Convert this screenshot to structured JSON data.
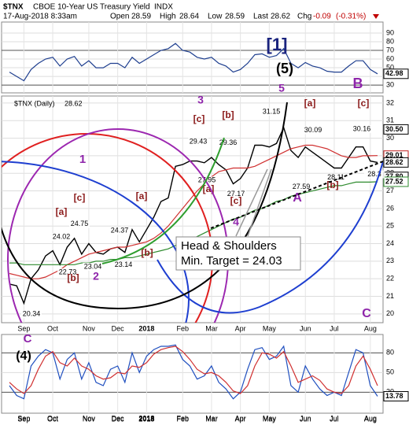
{
  "header": {
    "symbol": "$TNX",
    "name": "CBOE 10-Year US Treasury Yield",
    "exchange": "INDX",
    "timestamp": "17-Aug-2018 8:33am",
    "open_label": "Open",
    "open": 28.59,
    "high_label": "High",
    "high": 28.64,
    "low_label": "Low",
    "low": 28.59,
    "last_label": "Last",
    "last": 28.62,
    "change_label": "Chg",
    "change": -0.09,
    "change_pct": {
      "value": -0.31,
      "label": "(-0.31%)"
    }
  },
  "chart_data": [
    {
      "type": "line",
      "ylim": [
        21,
        102.7
      ],
      "yticks": [
        30,
        40,
        50,
        60,
        70,
        80,
        90
      ],
      "thresholds": [
        70,
        30
      ],
      "grid": true,
      "series": [
        {
          "color": "#1f3f8f",
          "values": [
            45,
            40,
            35,
            48,
            55,
            60,
            62,
            52,
            60,
            63,
            52,
            58,
            50,
            50,
            55,
            55,
            50,
            62,
            55,
            60,
            65,
            70,
            72,
            78,
            70,
            68,
            62,
            60,
            62,
            55,
            52,
            45,
            48,
            55,
            65,
            66,
            62,
            64,
            72,
            55,
            50,
            56,
            52,
            50,
            46,
            45,
            45,
            52,
            58,
            58,
            48,
            42.98
          ]
        }
      ],
      "markers": [
        {
          "value": 42.98,
          "color": "#000000"
        }
      ]
    },
    {
      "type": "line",
      "legend": "$TNX (Daily)",
      "legend_value": 28.62,
      "ylim": [
        19.5,
        32.4
      ],
      "yticks": [
        20,
        21,
        22,
        23,
        24,
        25,
        26,
        27,
        28,
        29,
        30,
        31,
        32
      ],
      "grid": true,
      "categories": [
        null,
        null,
        "Sep",
        null,
        null,
        null,
        "Oct",
        null,
        null,
        null,
        null,
        "Nov",
        null,
        null,
        null,
        "Dec",
        null,
        null,
        null,
        "2018",
        null,
        null,
        null,
        null,
        "Feb",
        null,
        null,
        null,
        "Mar",
        null,
        null,
        null,
        "Apr",
        null,
        null,
        null,
        "May",
        null,
        null,
        null,
        null,
        "Jun",
        null,
        null,
        null,
        "Jul",
        null,
        null,
        null,
        null,
        "Aug",
        null
      ],
      "series": [
        {
          "color": "#000000",
          "values": [
            21.7,
            21.6,
            20.6,
            22.0,
            22.5,
            23.3,
            23.6,
            22.8,
            23.8,
            24.3,
            23.4,
            24.0,
            23.5,
            23.4,
            23.7,
            23.8,
            23.5,
            24.8,
            24.1,
            24.8,
            25.5,
            26.4,
            26.6,
            28.4,
            28.5,
            28.7,
            28.7,
            28.6,
            28.9,
            28.5,
            28.2,
            27.4,
            27.7,
            28.3,
            29.6,
            29.6,
            29.5,
            29.7,
            30.6,
            29.3,
            28.9,
            29.5,
            29.2,
            28.9,
            28.6,
            28.3,
            28.3,
            28.9,
            29.5,
            29.5,
            28.7,
            28.62
          ]
        },
        {
          "color": "#d03030",
          "values": [
            22.3,
            22.2,
            22.1,
            22.0,
            22.0,
            22.1,
            22.3,
            22.5,
            22.8,
            23.0,
            23.2,
            23.4,
            23.5,
            23.6,
            23.7,
            23.8,
            23.8,
            23.9,
            24.0,
            24.1,
            24.3,
            24.6,
            25.0,
            25.5,
            26.0,
            26.5,
            27.0,
            27.4,
            27.8,
            28.1,
            28.2,
            28.3,
            28.3,
            28.3,
            28.4,
            28.6,
            28.8,
            29.0,
            29.2,
            29.4,
            29.5,
            29.6,
            29.6,
            29.5,
            29.4,
            29.2,
            29.0,
            28.9,
            28.9,
            29.0,
            29.0,
            29.01
          ]
        },
        {
          "color": "#2e8b2e",
          "values": [
            22.9,
            22.9,
            22.8,
            22.8,
            22.8,
            22.8,
            22.8,
            22.8,
            22.8,
            22.8,
            22.9,
            22.9,
            23.0,
            23.0,
            23.1,
            23.1,
            23.2,
            23.2,
            23.3,
            23.4,
            23.5,
            23.6,
            23.7,
            23.9,
            24.0,
            24.2,
            24.4,
            24.6,
            24.8,
            25.0,
            25.2,
            25.4,
            25.5,
            25.7,
            25.9,
            26.0,
            26.2,
            26.4,
            26.5,
            26.7,
            26.8,
            26.9,
            27.0,
            27.1,
            27.2,
            27.3,
            27.3,
            27.4,
            27.5,
            27.5,
            27.5,
            27.52
          ]
        }
      ],
      "price_labels": [
        31.15,
        30.09,
        30.16,
        29.43,
        29.36,
        27.95,
        27.17,
        27.59,
        28.11,
        24.75,
        24.02,
        24.37,
        22.73,
        23.04,
        23.14,
        20.34,
        28.3
      ],
      "markers": [
        {
          "value": {
            "value": 30.5,
            "label": "30.50"
          },
          "color": "#000000"
        },
        {
          "value": 29.01,
          "color": "#c02020"
        },
        {
          "value": 28.62,
          "color": "#000000"
        },
        {
          "value": {
            "value": 27.8,
            "label": "27.80"
          },
          "color": "#000000"
        },
        {
          "value": 27.52,
          "color": "#2e8b2e"
        }
      ],
      "annotations": [
        {
          "text": "[1]",
          "color": "#1a237e"
        },
        {
          "text": "(5)",
          "color": "#000000"
        },
        {
          "text": "5",
          "color": "#8e24aa"
        },
        {
          "text": "B",
          "color": "#8e24aa"
        },
        {
          "text": "3",
          "color": "#8e24aa"
        },
        {
          "text": "[c]",
          "color": "#8b1a1a"
        },
        {
          "text": "[b]",
          "color": "#8b1a1a"
        },
        {
          "text": "[a]",
          "color": "#8b1a1a"
        },
        {
          "text": "[c]",
          "color": "#8b1a1a"
        },
        {
          "text": "[a]",
          "color": "#8b1a1a"
        },
        {
          "text": "[c]",
          "color": "#8b1a1a"
        },
        {
          "text": "4",
          "color": "#8e24aa"
        },
        {
          "text": "A",
          "color": "#8e24aa"
        },
        {
          "text": "[b]",
          "color": "#8b1a1a"
        },
        {
          "text": "C",
          "color": "#8e24aa"
        },
        {
          "text": "1",
          "color": "#8e24aa"
        },
        {
          "text": "[c]",
          "color": "#8b1a1a"
        },
        {
          "text": "[a]",
          "color": "#8b1a1a"
        },
        {
          "text": "[b]",
          "color": "#8b1a1a"
        },
        {
          "text": "2",
          "color": "#8e24aa"
        },
        {
          "text": "[a]",
          "color": "#8b1a1a"
        },
        {
          "text": "[b]",
          "color": "#8b1a1a"
        }
      ],
      "note": [
        "Head & Shoulders",
        "Min. Target = 24.03"
      ]
    },
    {
      "type": "line",
      "ylim": [
        -12,
        108
      ],
      "yticks": [
        20,
        50,
        80
      ],
      "thresholds": [
        80,
        20
      ],
      "grid": true,
      "categories": [
        null,
        null,
        "Sep",
        null,
        null,
        null,
        "Oct",
        null,
        null,
        null,
        null,
        "Nov",
        null,
        null,
        null,
        "Dec",
        null,
        null,
        null,
        "2018",
        null,
        null,
        null,
        null,
        "Feb",
        null,
        null,
        null,
        "Mar",
        null,
        null,
        null,
        "Apr",
        null,
        null,
        null,
        "May",
        null,
        null,
        null,
        null,
        "Jun",
        null,
        null,
        null,
        "Jul",
        null,
        null,
        null,
        null,
        "Aug",
        null
      ],
      "series": [
        {
          "color": "#1f4fbf",
          "values": [
            30,
            15,
            10,
            60,
            75,
            85,
            80,
            40,
            70,
            80,
            40,
            65,
            35,
            30,
            55,
            60,
            35,
            80,
            50,
            75,
            85,
            90,
            90,
            92,
            70,
            60,
            40,
            45,
            60,
            35,
            25,
            10,
            20,
            55,
            85,
            88,
            70,
            75,
            90,
            30,
            20,
            60,
            40,
            25,
            15,
            20,
            15,
            50,
            85,
            80,
            30,
            13.78
          ]
        },
        {
          "color": "#d03030",
          "values": [
            35,
            25,
            18,
            30,
            55,
            75,
            82,
            65,
            60,
            72,
            60,
            55,
            45,
            40,
            42,
            50,
            48,
            60,
            58,
            65,
            78,
            85,
            88,
            90,
            82,
            70,
            55,
            48,
            50,
            45,
            35,
            22,
            18,
            30,
            60,
            80,
            78,
            72,
            82,
            60,
            35,
            40,
            45,
            38,
            25,
            20,
            18,
            30,
            60,
            75,
            55,
            30
          ]
        }
      ],
      "markers": [
        {
          "value": 13.78,
          "color": "#000000"
        }
      ],
      "annotations": [
        {
          "text": "C",
          "color": "#8e24aa"
        },
        {
          "text": "(4)",
          "color": "#000000"
        }
      ]
    }
  ]
}
